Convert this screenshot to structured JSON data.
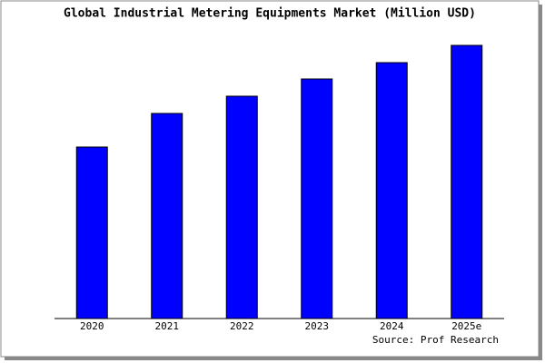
{
  "chart_data": {
    "type": "bar",
    "title": "Global Industrial Metering Equipments Market (Million USD)",
    "categories": [
      "2020",
      "2021",
      "2022",
      "2023",
      "2024",
      "2025e"
    ],
    "values": [
      189,
      226,
      245,
      264,
      282,
      301
    ],
    "color": "#0000ff",
    "ylim": [
      0,
      306
    ],
    "source": "Source: Prof Research"
  }
}
